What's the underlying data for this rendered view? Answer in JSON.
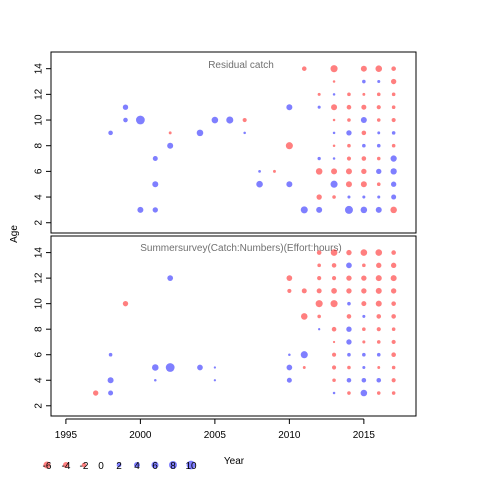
{
  "chart_data": {
    "type": "scatter",
    "xlabel": "Year",
    "ylabel": "Age",
    "xlim": [
      1994,
      2018.5
    ],
    "x_ticks": [
      1995,
      2000,
      2005,
      2010,
      2015
    ],
    "y_ticks": [
      2,
      4,
      6,
      8,
      10,
      12,
      14
    ],
    "grid": false,
    "colors": {
      "negative": "#ff0000",
      "positive": "#0000ff",
      "alpha": 0.5
    },
    "legend": {
      "placement": "bottom-left",
      "items": [
        {
          "label": "-6",
          "value": -6
        },
        {
          "label": "-4",
          "value": -4
        },
        {
          "label": "-2",
          "value": -2
        },
        {
          "label": "0",
          "value": 0
        },
        {
          "label": "2",
          "value": 2
        },
        {
          "label": "4",
          "value": 4
        },
        {
          "label": "6",
          "value": 6
        },
        {
          "label": "8",
          "value": 8
        },
        {
          "label": "10",
          "value": 10
        }
      ]
    },
    "panels": [
      {
        "title": "Residual catch",
        "ylim": [
          1.2,
          15.3
        ],
        "points": [
          [
            1998,
            9,
            2
          ],
          [
            1999,
            10,
            2
          ],
          [
            1999,
            11,
            3
          ],
          [
            2000,
            10,
            10
          ],
          [
            2000,
            3,
            4
          ],
          [
            2001,
            3,
            3
          ],
          [
            2001,
            5,
            4
          ],
          [
            2001,
            7,
            2.5
          ],
          [
            2002,
            8,
            4
          ],
          [
            2002,
            9,
            -0.5
          ],
          [
            2004,
            9,
            5
          ],
          [
            2005,
            10,
            5
          ],
          [
            2006,
            10,
            6
          ],
          [
            2007,
            10,
            -1.5
          ],
          [
            2007,
            9,
            0.3
          ],
          [
            2008,
            5,
            5
          ],
          [
            2008,
            6,
            0.4
          ],
          [
            2009,
            6,
            -0.5
          ],
          [
            2010,
            11,
            4
          ],
          [
            2010,
            8,
            -6
          ],
          [
            2010,
            5,
            4
          ],
          [
            2011,
            14,
            -2
          ],
          [
            2011,
            3,
            6
          ],
          [
            2012,
            11,
            0.6
          ],
          [
            2012,
            12,
            -0.6
          ],
          [
            2012,
            7,
            0.8
          ],
          [
            2012,
            6,
            -5
          ],
          [
            2012,
            4,
            -3
          ],
          [
            2012,
            3,
            4
          ],
          [
            2013,
            14,
            -6
          ],
          [
            2013,
            13,
            -0.3
          ],
          [
            2013,
            12,
            0.3
          ],
          [
            2013,
            11,
            -4
          ],
          [
            2013,
            10,
            -0.3
          ],
          [
            2013,
            9,
            0.3
          ],
          [
            2013,
            8,
            -0.3
          ],
          [
            2013,
            7,
            0.3
          ],
          [
            2013,
            6,
            -4
          ],
          [
            2013,
            5,
            6
          ],
          [
            2013,
            4,
            -1
          ],
          [
            2014,
            12,
            -1
          ],
          [
            2014,
            11,
            -2
          ],
          [
            2014,
            10,
            -1
          ],
          [
            2014,
            9,
            3
          ],
          [
            2014,
            8,
            -1
          ],
          [
            2014,
            7,
            -1.5
          ],
          [
            2014,
            6,
            -4
          ],
          [
            2014,
            5,
            -4
          ],
          [
            2014,
            4,
            0.6
          ],
          [
            2014,
            3,
            8
          ],
          [
            2015,
            14,
            -4
          ],
          [
            2015,
            13,
            1
          ],
          [
            2015,
            12,
            -0.5
          ],
          [
            2015,
            11,
            -2.5
          ],
          [
            2015,
            10,
            4
          ],
          [
            2015,
            9,
            -2
          ],
          [
            2015,
            8,
            1
          ],
          [
            2015,
            7,
            -2
          ],
          [
            2015,
            6,
            -3
          ],
          [
            2015,
            5,
            -4
          ],
          [
            2015,
            4,
            0.6
          ],
          [
            2015,
            3,
            5
          ],
          [
            2016,
            14,
            -5
          ],
          [
            2016,
            13,
            0.6
          ],
          [
            2016,
            12,
            -1
          ],
          [
            2016,
            11,
            -1.5
          ],
          [
            2016,
            10,
            -1
          ],
          [
            2016,
            9,
            0.5
          ],
          [
            2016,
            8,
            1
          ],
          [
            2016,
            7,
            -1
          ],
          [
            2016,
            6,
            3
          ],
          [
            2016,
            5,
            -1
          ],
          [
            2016,
            4,
            0.6
          ],
          [
            2016,
            3,
            4
          ],
          [
            2017,
            14,
            -2
          ],
          [
            2017,
            13,
            -3
          ],
          [
            2017,
            12,
            -1
          ],
          [
            2017,
            11,
            -1
          ],
          [
            2017,
            10,
            -1.5
          ],
          [
            2017,
            9,
            1
          ],
          [
            2017,
            8,
            -1
          ],
          [
            2017,
            7,
            4.5
          ],
          [
            2017,
            6,
            4.5
          ],
          [
            2017,
            5,
            3
          ],
          [
            2017,
            4,
            2.5
          ],
          [
            2017,
            3,
            -5
          ]
        ]
      },
      {
        "title": "Summersurvey(Catch:Numbers)(Effort:hours)",
        "ylim": [
          1.2,
          15.3
        ],
        "points": [
          [
            1997,
            3,
            -3
          ],
          [
            1998,
            3,
            2.5
          ],
          [
            1998,
            4,
            4
          ],
          [
            1998,
            6,
            1
          ],
          [
            1999,
            10,
            -3
          ],
          [
            2001,
            5,
            5
          ],
          [
            2001,
            4,
            0.3
          ],
          [
            2002,
            5,
            10
          ],
          [
            2002,
            12,
            3.5
          ],
          [
            2004,
            5,
            3.5
          ],
          [
            2005,
            5,
            0.2
          ],
          [
            2005,
            4,
            0.2
          ],
          [
            2010,
            12,
            -3.5
          ],
          [
            2010,
            11,
            -1.5
          ],
          [
            2010,
            6,
            0.3
          ],
          [
            2010,
            5,
            3.5
          ],
          [
            2010,
            4,
            2.5
          ],
          [
            2011,
            11,
            -2.5
          ],
          [
            2011,
            9,
            -5
          ],
          [
            2011,
            6,
            6
          ],
          [
            2011,
            5,
            -0.5
          ],
          [
            2012,
            14,
            -2
          ],
          [
            2012,
            13,
            -1
          ],
          [
            2012,
            12,
            -1.5
          ],
          [
            2012,
            11,
            -2.5
          ],
          [
            2012,
            10,
            -6
          ],
          [
            2012,
            9,
            -1
          ],
          [
            2012,
            8,
            0.2
          ],
          [
            2013,
            14,
            -5
          ],
          [
            2013,
            13,
            -2
          ],
          [
            2013,
            12,
            -1.5
          ],
          [
            2013,
            11,
            -3.5
          ],
          [
            2013,
            10,
            -6
          ],
          [
            2013,
            8,
            -2
          ],
          [
            2013,
            7,
            -0.2
          ],
          [
            2013,
            6,
            -1.5
          ],
          [
            2013,
            5,
            -1.5
          ],
          [
            2013,
            4,
            -1
          ],
          [
            2013,
            3,
            0.3
          ],
          [
            2014,
            14,
            -3
          ],
          [
            2014,
            13,
            3.5
          ],
          [
            2014,
            12,
            -3
          ],
          [
            2014,
            11,
            -3
          ],
          [
            2014,
            10,
            1
          ],
          [
            2014,
            9,
            -2
          ],
          [
            2014,
            8,
            3
          ],
          [
            2014,
            7,
            3
          ],
          [
            2014,
            6,
            1
          ],
          [
            2014,
            5,
            -1
          ],
          [
            2014,
            4,
            2
          ],
          [
            2014,
            3,
            -1
          ],
          [
            2015,
            14,
            -5
          ],
          [
            2015,
            13,
            -1
          ],
          [
            2015,
            12,
            -3
          ],
          [
            2015,
            11,
            -3
          ],
          [
            2015,
            10,
            -2.5
          ],
          [
            2015,
            9,
            0.6
          ],
          [
            2015,
            8,
            -1
          ],
          [
            2015,
            7,
            -0.6
          ],
          [
            2015,
            6,
            1
          ],
          [
            2015,
            5,
            0.6
          ],
          [
            2015,
            4,
            2
          ],
          [
            2015,
            3,
            5
          ],
          [
            2016,
            14,
            -5
          ],
          [
            2016,
            13,
            -3
          ],
          [
            2016,
            12,
            -4
          ],
          [
            2016,
            11,
            -4
          ],
          [
            2016,
            10,
            -4
          ],
          [
            2016,
            9,
            -2
          ],
          [
            2016,
            8,
            -1.5
          ],
          [
            2016,
            7,
            -1
          ],
          [
            2016,
            6,
            1
          ],
          [
            2016,
            5,
            -0.5
          ],
          [
            2016,
            4,
            2
          ],
          [
            2016,
            3,
            -1
          ],
          [
            2017,
            14,
            -2
          ],
          [
            2017,
            13,
            -3
          ],
          [
            2017,
            12,
            -4
          ],
          [
            2017,
            11,
            -3
          ],
          [
            2017,
            10,
            -2
          ],
          [
            2017,
            9,
            -2
          ],
          [
            2017,
            8,
            -1
          ],
          [
            2017,
            7,
            -1.5
          ],
          [
            2017,
            6,
            -2
          ],
          [
            2017,
            5,
            -1
          ],
          [
            2017,
            4,
            -1.5
          ],
          [
            2017,
            3,
            -1
          ]
        ]
      }
    ]
  }
}
